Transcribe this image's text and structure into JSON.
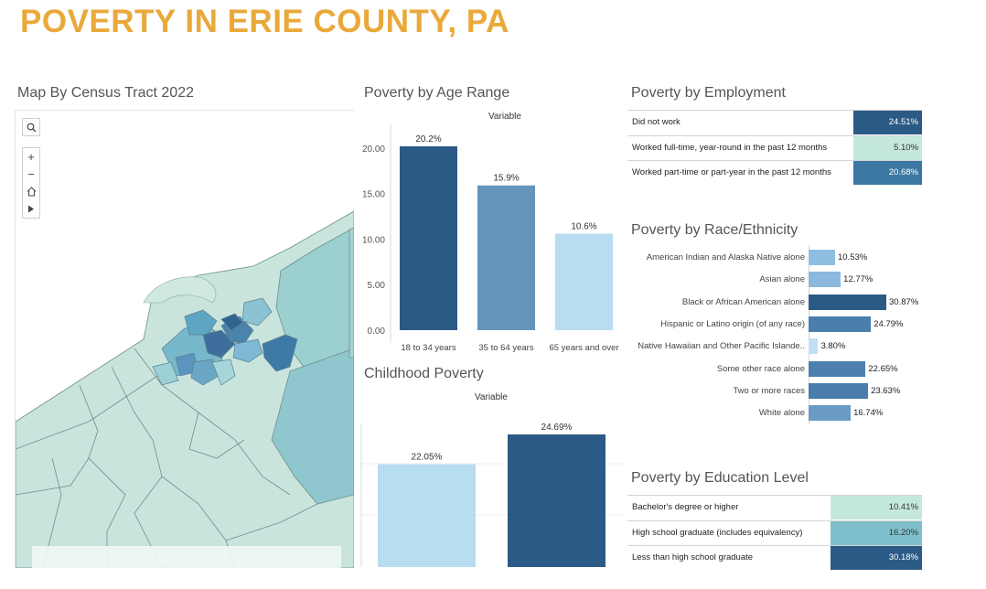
{
  "page": {
    "title": "POVERTY IN ERIE COUNTY, PA"
  },
  "map": {
    "title": "Map By Census Tract 2022",
    "controls": {
      "search_icon": "search-icon",
      "zoom_in": "+",
      "zoom_out": "−",
      "home_icon": "home-icon",
      "expand_icon": "play-icon"
    },
    "colors": {
      "light": "#c5e3da",
      "mid": "#9ccfcf",
      "dark": "#5b9fbf",
      "darkest": "#3e6f9c"
    }
  },
  "age": {
    "title": "Poverty by Age Range",
    "variable_label": "Variable",
    "chart_data": {
      "type": "bar",
      "categories": [
        "18 to 34 years",
        "35 to 64 years",
        "65 years and over"
      ],
      "values": [
        20.2,
        15.9,
        10.6
      ],
      "value_labels": [
        "20.2%",
        "15.9%",
        "10.6%"
      ],
      "colors": [
        "#2c5a86",
        "#6294bc",
        "#b8dcf0"
      ],
      "yticks": [
        "20.00",
        "15.00",
        "10.00",
        "5.00",
        "0.00"
      ],
      "ylim": [
        0,
        21.5
      ]
    }
  },
  "child": {
    "title": "Childhood Poverty",
    "variable_label": "Variable",
    "chart_data": {
      "type": "bar",
      "values": [
        22.05,
        24.69
      ],
      "value_labels": [
        "22.05%",
        "24.69%"
      ],
      "colors": [
        "#b8dcf0",
        "#2c5a86"
      ],
      "ylim": [
        0,
        25.5
      ]
    }
  },
  "employment": {
    "title": "Poverty by Employment",
    "rows": [
      {
        "label": "Did not work",
        "value": "24.51%",
        "bg": "#2c5a86",
        "fg": "#ffffff"
      },
      {
        "label": "Worked full-time, year-round in the past 12 months",
        "value": "5.10%",
        "bg": "#c5e8dc",
        "fg": "#333333"
      },
      {
        "label": "Worked part-time or part-year in the past 12 months",
        "value": "20.68%",
        "bg": "#3c77a2",
        "fg": "#ffffff"
      }
    ]
  },
  "race": {
    "title": "Poverty by Race/Ethnicity",
    "chart_data": {
      "type": "bar",
      "categories": [
        "American Indian and Alaska Native alone",
        "Asian alone",
        "Black or African American alone",
        "Hispanic or Latino origin (of any race)",
        "Native Hawaiian and Other Pacific Islande..",
        "Some other race alone",
        "Two or more races",
        "White alone"
      ],
      "values": [
        10.53,
        12.77,
        30.87,
        24.79,
        3.8,
        22.65,
        23.63,
        16.74
      ],
      "value_labels": [
        "10.53%",
        "12.77%",
        "30.87%",
        "24.79%",
        "3.80%",
        "22.65%",
        "23.63%",
        "16.74%"
      ],
      "colors": [
        "#8fbfe0",
        "#8bb8dc",
        "#2c5a86",
        "#4a7ead",
        "#bfe0f3",
        "#4d80ae",
        "#4a7dac",
        "#6a9bc7"
      ]
    }
  },
  "education": {
    "title": "Poverty by Education Level",
    "rows": [
      {
        "label": "Bachelor's degree or higher",
        "value": "10.41%",
        "bg": "#c5e8dc",
        "fg": "#333333"
      },
      {
        "label": "High school graduate (includes equivalency)",
        "value": "16.20%",
        "bg": "#7fbfcc",
        "fg": "#333333"
      },
      {
        "label": "Less than high school graduate",
        "value": "30.18%",
        "bg": "#2c5a86",
        "fg": "#ffffff"
      }
    ]
  }
}
